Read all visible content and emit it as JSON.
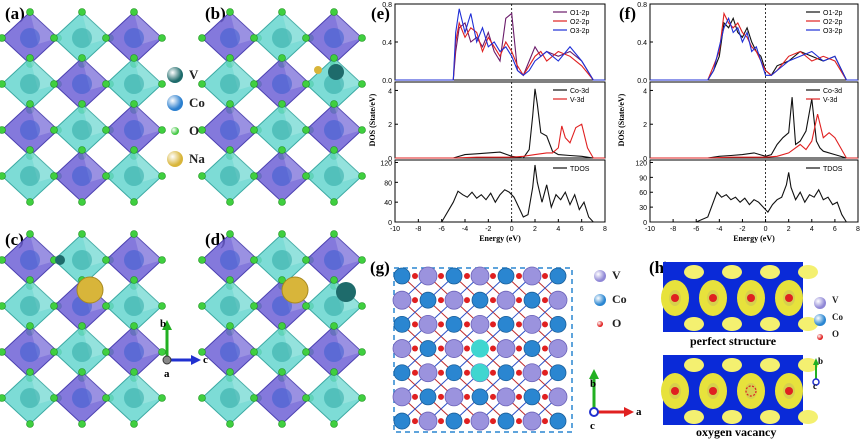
{
  "panels": {
    "a": "(a)",
    "b": "(b)",
    "c": "(c)",
    "d": "(d)",
    "e": "(e)",
    "f": "(f)",
    "g": "(g)",
    "h": "(h)"
  },
  "atom_legend": [
    {
      "symbol": "V",
      "color": "#1e6b6b"
    },
    {
      "symbol": "Co",
      "color": "#2b7fcf"
    },
    {
      "symbol": "O",
      "color": "#44c844"
    },
    {
      "symbol": "Na",
      "color": "#d8b53a"
    }
  ],
  "axes_abc": {
    "b": "b",
    "a": "a",
    "c": "c"
  },
  "dos_common": {
    "xlabel": "Energy (eV)",
    "xticks": [
      "-10",
      "-8",
      "-6",
      "-4",
      "-2",
      "0",
      "2",
      "4",
      "6",
      "8"
    ]
  },
  "chart_data": [
    {
      "type": "line",
      "panel": "e",
      "ylabel": "DOS (State/eV)",
      "subplots": [
        {
          "ylim": [
            0,
            0.8
          ],
          "yticks": [
            "0.0",
            "0.4",
            "0.8"
          ],
          "series": [
            {
              "name": "O1-2p",
              "color": "#6a1a6a",
              "x": [
                -10,
                -5,
                -4.8,
                -4.5,
                -4,
                -3.5,
                -3,
                -2.5,
                -2,
                -1.5,
                -1,
                -0.5,
                0,
                0.5,
                1,
                1.5,
                2,
                2.5,
                3,
                4,
                5,
                6,
                7,
                8
              ],
              "y": [
                0,
                0,
                0.3,
                0.55,
                0.6,
                0.4,
                0.45,
                0.35,
                0.5,
                0.3,
                0.2,
                0.65,
                0.7,
                0.1,
                0.05,
                0.2,
                0.35,
                0.25,
                0.3,
                0.25,
                0.3,
                0.2,
                0,
                0
              ]
            },
            {
              "name": "O2-2p",
              "color": "#e02020",
              "x": [
                -10,
                -5,
                -4.8,
                -4.5,
                -4,
                -3.5,
                -3,
                -2.5,
                -2,
                -1.5,
                -1,
                -0.5,
                0,
                0.5,
                1,
                1.5,
                2,
                2.5,
                3,
                4,
                5,
                6,
                7,
                8
              ],
              "y": [
                0,
                0,
                0.4,
                0.6,
                0.45,
                0.55,
                0.5,
                0.3,
                0.45,
                0.35,
                0.25,
                0.4,
                0.3,
                0.15,
                0.05,
                0.15,
                0.25,
                0.3,
                0.2,
                0.3,
                0.25,
                0.15,
                0,
                0
              ]
            },
            {
              "name": "O3-2p",
              "color": "#1f2fd6",
              "x": [
                -10,
                -5,
                -4.8,
                -4.5,
                -4,
                -3.5,
                -3,
                -2.5,
                -2,
                -1.5,
                -1,
                -0.5,
                0,
                0.5,
                1,
                1.5,
                2,
                2.5,
                3,
                4,
                5,
                6,
                7,
                8
              ],
              "y": [
                0,
                0,
                0.5,
                0.75,
                0.5,
                0.7,
                0.4,
                0.55,
                0.35,
                0.4,
                0.3,
                0.35,
                0.25,
                0.1,
                0.05,
                0.1,
                0.2,
                0.25,
                0.3,
                0.2,
                0.35,
                0.2,
                0,
                0
              ]
            }
          ]
        },
        {
          "ylim": [
            0,
            4.5
          ],
          "yticks": [
            "0",
            "2",
            "4"
          ],
          "series": [
            {
              "name": "Co-3d",
              "color": "#111111",
              "x": [
                -10,
                -5,
                -4,
                -3,
                -2,
                -1,
                0,
                1,
                1.5,
                1.8,
                2,
                2.2,
                2.5,
                3,
                3.5,
                4,
                5,
                6,
                7,
                8
              ],
              "y": [
                0,
                0,
                0.2,
                0.25,
                0.3,
                0.35,
                0.1,
                0,
                0.5,
                2.5,
                4.1,
                3.2,
                1.5,
                1.3,
                0.4,
                0.2,
                0.15,
                0.1,
                0,
                0
              ]
            },
            {
              "name": "V-3d",
              "color": "#e02020",
              "x": [
                -10,
                -5,
                -3,
                -1,
                0,
                1,
                2,
                3,
                3.5,
                4,
                4.3,
                4.6,
                5,
                5.5,
                6,
                6.5,
                7,
                8
              ],
              "y": [
                0,
                0,
                0.05,
                0.05,
                0.05,
                0.1,
                0.2,
                0.3,
                0.3,
                0.6,
                1.9,
                1.2,
                0.9,
                1.8,
                2.0,
                0.6,
                0,
                0
              ]
            }
          ]
        },
        {
          "ylim": [
            0,
            125
          ],
          "yticks": [
            "0",
            "40",
            "80",
            "120"
          ],
          "series": [
            {
              "name": "TDOS",
              "color": "#111111",
              "x": [
                -10,
                -6,
                -5,
                -4.6,
                -4.2,
                -3.8,
                -3.4,
                -3,
                -2.6,
                -2.2,
                -1.8,
                -1.4,
                -1,
                -0.6,
                -0.2,
                0.2,
                0.6,
                1,
                1.4,
                1.8,
                2,
                2.2,
                2.6,
                3,
                3.4,
                3.8,
                4.2,
                4.6,
                5,
                5.4,
                5.8,
                6.2,
                6.6,
                7,
                8
              ],
              "y": [
                0,
                0,
                40,
                62,
                55,
                50,
                60,
                48,
                55,
                45,
                58,
                40,
                55,
                65,
                60,
                50,
                30,
                10,
                15,
                70,
                115,
                80,
                40,
                75,
                30,
                55,
                45,
                60,
                35,
                55,
                25,
                40,
                10,
                0,
                0
              ]
            }
          ]
        }
      ]
    },
    {
      "type": "line",
      "panel": "f",
      "ylabel": "DOS (State/eV)",
      "subplots": [
        {
          "ylim": [
            0,
            0.8
          ],
          "yticks": [
            "0.0",
            "0.4",
            "0.8"
          ],
          "series": [
            {
              "name": "O1-2p",
              "color": "#111111",
              "x": [
                -10,
                -5,
                -4.5,
                -4,
                -3.6,
                -3.2,
                -2.8,
                -2.4,
                -2,
                -1.6,
                -1.2,
                -0.8,
                -0.4,
                0,
                0.5,
                1,
                2,
                3,
                4,
                5,
                6,
                7,
                8
              ],
              "y": [
                0,
                0,
                0.1,
                0.25,
                0.6,
                0.55,
                0.65,
                0.5,
                0.45,
                0.55,
                0.4,
                0.3,
                0.25,
                0.1,
                0.05,
                0.15,
                0.2,
                0.3,
                0.25,
                0.2,
                0.25,
                0,
                0
              ]
            },
            {
              "name": "O2-2p",
              "color": "#e02020",
              "x": [
                -10,
                -5,
                -4.5,
                -4,
                -3.6,
                -3.2,
                -2.8,
                -2.4,
                -2,
                -1.6,
                -1.2,
                -0.8,
                -0.4,
                0,
                0.5,
                1,
                2,
                3,
                4,
                5,
                6,
                7,
                8
              ],
              "y": [
                0,
                0,
                0.15,
                0.3,
                0.7,
                0.6,
                0.55,
                0.6,
                0.5,
                0.45,
                0.35,
                0.3,
                0.2,
                0.1,
                0.05,
                0.1,
                0.25,
                0.3,
                0.2,
                0.25,
                0.2,
                0,
                0
              ]
            },
            {
              "name": "O3-2p",
              "color": "#1f2fd6",
              "x": [
                -10,
                -5,
                -4.5,
                -4,
                -3.6,
                -3.2,
                -2.8,
                -2.4,
                -2,
                -1.6,
                -1.2,
                -0.8,
                -0.4,
                0,
                0.5,
                1,
                2,
                3,
                4,
                5,
                6,
                7,
                8
              ],
              "y": [
                0,
                0,
                0.1,
                0.35,
                0.55,
                0.65,
                0.5,
                0.55,
                0.4,
                0.5,
                0.3,
                0.35,
                0.2,
                0.05,
                0.05,
                0.1,
                0.2,
                0.25,
                0.3,
                0.2,
                0.25,
                0,
                0
              ]
            }
          ]
        },
        {
          "ylim": [
            0,
            4.5
          ],
          "yticks": [
            "0",
            "2",
            "4"
          ],
          "series": [
            {
              "name": "Co-3d",
              "color": "#111111",
              "x": [
                -10,
                -5,
                -4,
                -3,
                -2,
                -1,
                0,
                0.5,
                1,
                1.5,
                2,
                2.3,
                2.6,
                3,
                3.5,
                4,
                4.4,
                4.7,
                5,
                6,
                7,
                8
              ],
              "y": [
                0,
                0,
                0.1,
                0.15,
                0.2,
                0.3,
                0.1,
                0.2,
                0.8,
                1.2,
                1.5,
                3.6,
                0.8,
                1.0,
                1.6,
                3.5,
                1.0,
                0.6,
                0.4,
                0.2,
                0,
                0
              ]
            },
            {
              "name": "V-3d",
              "color": "#e02020",
              "x": [
                -10,
                -5,
                -3,
                -1,
                0,
                1,
                2,
                3,
                3.5,
                4,
                4.5,
                5,
                5.5,
                6,
                6.5,
                7,
                8
              ],
              "y": [
                0,
                0,
                0.05,
                0.05,
                0.05,
                0.1,
                0.3,
                0.8,
                0.5,
                1.0,
                2.6,
                1.2,
                1.5,
                1.2,
                0.6,
                0,
                0
              ]
            }
          ]
        },
        {
          "ylim": [
            0,
            125
          ],
          "yticks": [
            "0",
            "30",
            "60",
            "90",
            "120"
          ],
          "series": [
            {
              "name": "TDOS",
              "color": "#111111",
              "x": [
                -10,
                -6,
                -5,
                -4.6,
                -4.2,
                -3.8,
                -3.4,
                -3,
                -2.6,
                -2.2,
                -1.8,
                -1.4,
                -1,
                -0.6,
                -0.2,
                0.2,
                0.6,
                1,
                1.4,
                1.8,
                2,
                2.2,
                2.6,
                3,
                3.4,
                3.8,
                4.2,
                4.6,
                5,
                5.4,
                5.8,
                6.2,
                6.6,
                7,
                8
              ],
              "y": [
                0,
                0,
                10,
                35,
                60,
                50,
                55,
                45,
                50,
                40,
                48,
                35,
                45,
                40,
                30,
                20,
                35,
                45,
                50,
                75,
                100,
                70,
                45,
                60,
                40,
                55,
                50,
                65,
                45,
                50,
                35,
                40,
                15,
                0,
                0
              ]
            }
          ]
        }
      ]
    }
  ],
  "structure_g": {
    "legend": [
      {
        "symbol": "V",
        "color": "#8f87d6"
      },
      {
        "symbol": "Co",
        "color": "#2a86d1"
      },
      {
        "symbol": "O",
        "color": "#e02020"
      }
    ],
    "axes": {
      "b": "b",
      "a": "a",
      "c": "c"
    }
  },
  "structure_h": {
    "captions": {
      "top": "perfect structure",
      "bottom": "oxygen vacancy"
    },
    "legend": [
      {
        "symbol": "V",
        "color": "#8f87d6"
      },
      {
        "symbol": "Co",
        "color": "#2a86d1"
      },
      {
        "symbol": "O",
        "color": "#e02020"
      }
    ],
    "axes": {
      "b": "b",
      "c": "c"
    }
  }
}
